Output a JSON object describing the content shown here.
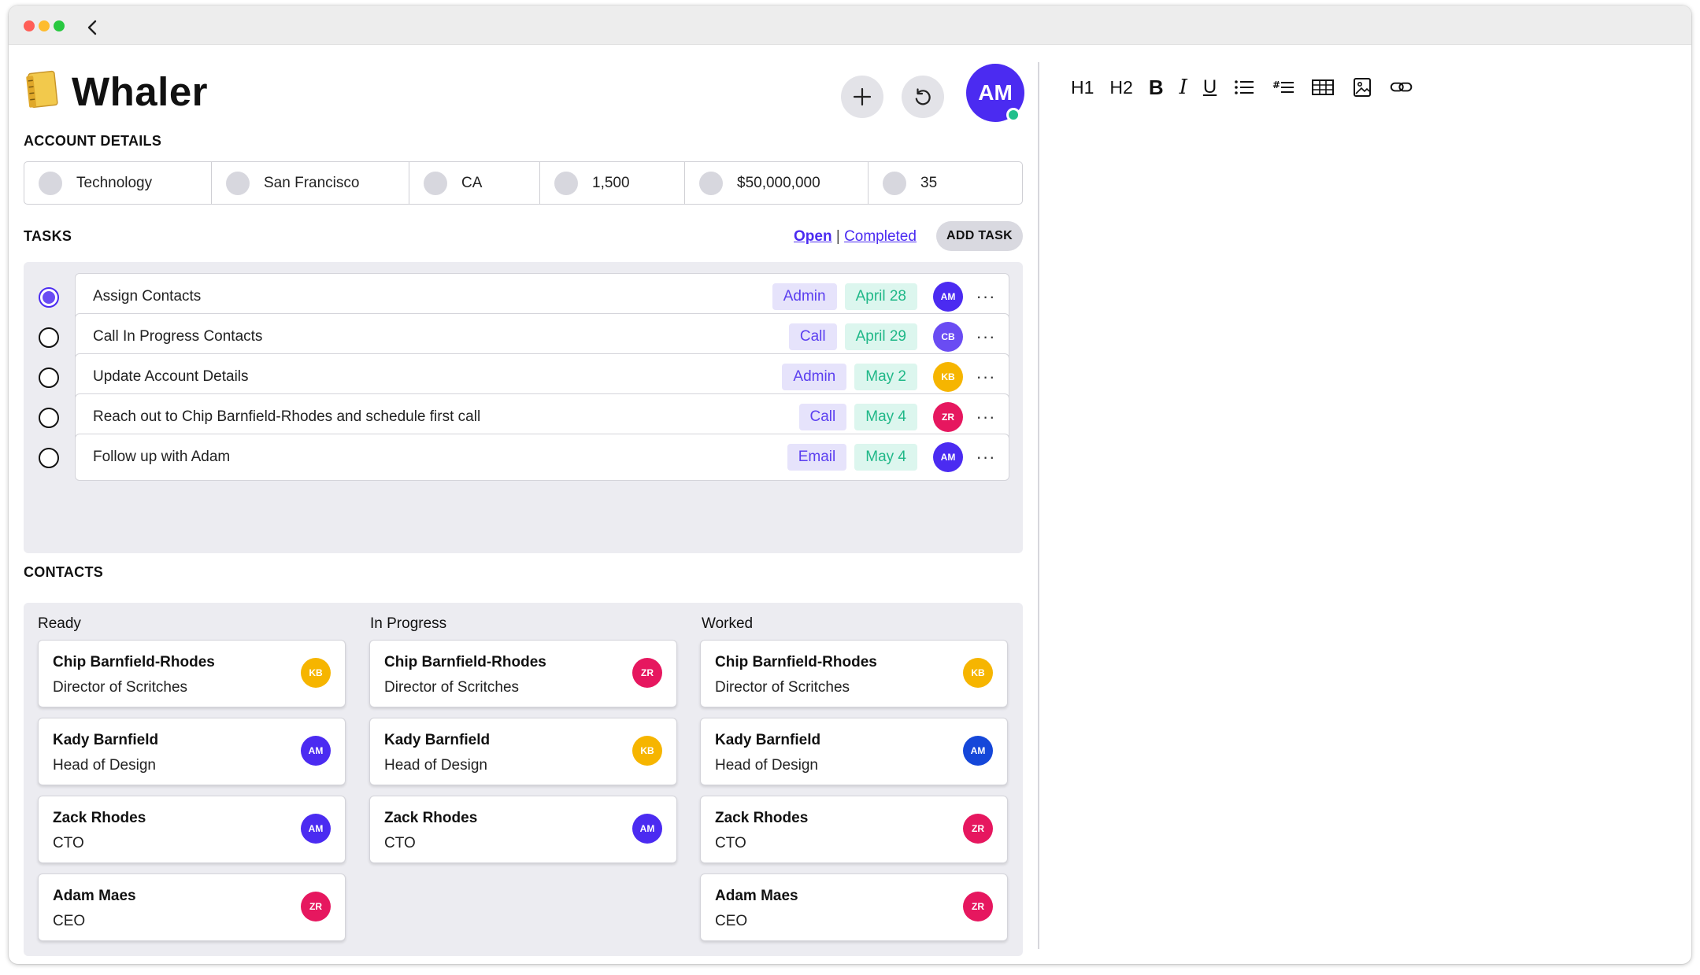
{
  "app": {
    "name": "Whaler",
    "icon": "notebook-icon",
    "user_initials": "AM"
  },
  "colors": {
    "accent": "#4b2bf1",
    "online": "#22c08c",
    "tag_type_bg": "#e6e3fb",
    "tag_date_bg": "#dcf6ee",
    "avatar_AM": "#4b2bf1",
    "avatar_CB": "#6a4cf3",
    "avatar_KB": "#f6b500",
    "avatar_ZR": "#e6175f"
  },
  "account": {
    "title": "ACCOUNT DETAILS",
    "fields": [
      "Technology",
      "San Francisco",
      "CA",
      "1,500",
      "$50,000,000",
      "35"
    ]
  },
  "tasks": {
    "title": "TASKS",
    "filter_open": "Open",
    "filter_separator": "|",
    "filter_completed": "Completed",
    "add_label": "ADD TASK",
    "items": [
      {
        "name": "Assign Contacts",
        "type": "Admin",
        "date": "April 28",
        "owner": "AM",
        "done": true
      },
      {
        "name": "Call In Progress Contacts",
        "type": "Call",
        "date": "April 29",
        "owner": "CB",
        "done": false
      },
      {
        "name": "Update Account Details",
        "type": "Admin",
        "date": "May 2",
        "owner": "KB",
        "done": false
      },
      {
        "name": "Reach out to Chip Barnfield-Rhodes and schedule first call",
        "type": "Call",
        "date": "May 4",
        "owner": "ZR",
        "done": false
      },
      {
        "name": "Follow up with Adam",
        "type": "Email",
        "date": "May 4",
        "owner": "AM",
        "done": false
      }
    ]
  },
  "contacts": {
    "title": "CONTACTS",
    "columns": [
      {
        "title": "Ready",
        "cards": [
          {
            "name": "Chip Barnfield-Rhodes",
            "role": "Director of Scritches",
            "owner": "KB"
          },
          {
            "name": "Kady Barnfield",
            "role": "Head of Design",
            "owner": "AM"
          },
          {
            "name": "Zack Rhodes",
            "role": "CTO",
            "owner": "AM"
          },
          {
            "name": "Adam Maes",
            "role": "CEO",
            "owner": "ZR"
          }
        ]
      },
      {
        "title": "In Progress",
        "cards": [
          {
            "name": "Chip Barnfield-Rhodes",
            "role": "Director of Scritches",
            "owner": "ZR"
          },
          {
            "name": "Kady Barnfield",
            "role": "Head of Design",
            "owner": "KB"
          },
          {
            "name": "Zack Rhodes",
            "role": "CTO",
            "owner": "AM"
          }
        ]
      },
      {
        "title": "Worked",
        "cards": [
          {
            "name": "Chip Barnfield-Rhodes",
            "role": "Director of Scritches",
            "owner": "KB"
          },
          {
            "name": "Kady Barnfield",
            "role": "Head of Design",
            "owner": "AM"
          },
          {
            "name": "Zack Rhodes",
            "role": "CTO",
            "owner": "ZR"
          },
          {
            "name": "Adam Maes",
            "role": "CEO",
            "owner": "ZR"
          }
        ]
      }
    ]
  },
  "editor_toolbar": {
    "h1": "H1",
    "h2": "H2",
    "bold": "B",
    "italic": "I",
    "underline": "U",
    "icons": [
      "bullet-list-icon",
      "numbered-list-icon",
      "table-icon",
      "image-icon",
      "link-icon"
    ]
  }
}
